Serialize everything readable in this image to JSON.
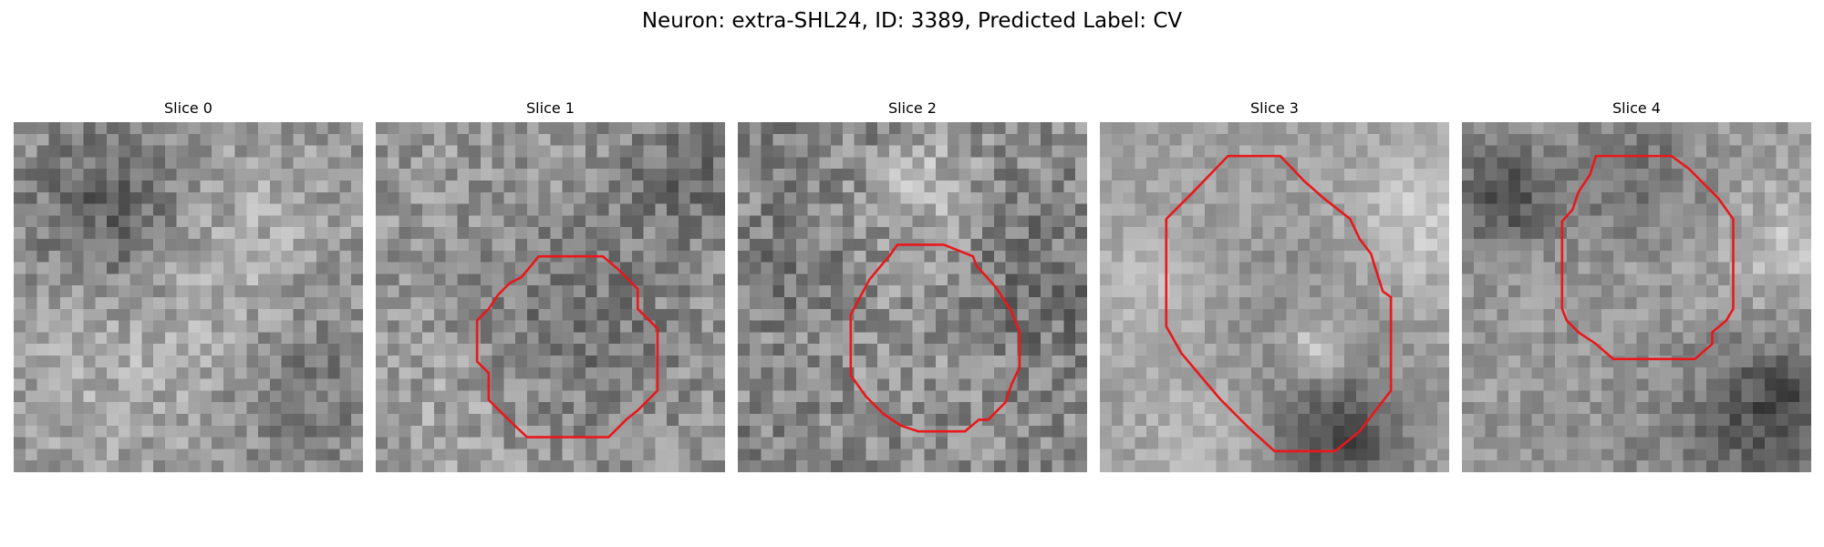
{
  "figure": {
    "title": "Neuron: extra-SHL24, ID: 3389, Predicted Label: CV",
    "contour_color": "#e8181b"
  },
  "panels": [
    {
      "title": "Slice 0",
      "has_contour": false
    },
    {
      "title": "Slice 1",
      "has_contour": true
    },
    {
      "title": "Slice 2",
      "has_contour": true
    },
    {
      "title": "Slice 3",
      "has_contour": true
    },
    {
      "title": "Slice 4",
      "has_contour": true
    }
  ]
}
